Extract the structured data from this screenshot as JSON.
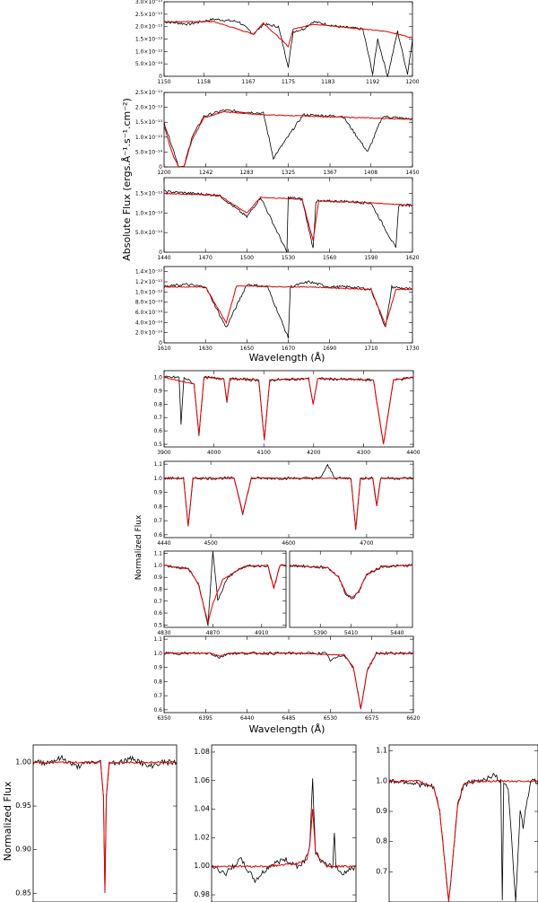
{
  "figure": {
    "group1_ylabel": "Absolute Flux (ergs.Å⁻¹.s⁻¹.cm⁻²)",
    "group1_xlabel": "Wavelength (Å)",
    "group2_ylabel": "Normalized Flux",
    "group2_xlabel": "Wavelength (Å)",
    "group3_ylabel": "Normalized Flux"
  },
  "colors": {
    "observed": "#000000",
    "model": "#e00000"
  },
  "chart_data": [
    {
      "type": "line",
      "id": "p1",
      "x_ticks": [
        1150,
        1158,
        1167,
        1175,
        1183,
        1192,
        1200
      ],
      "y_ticks": [
        "0",
        "5.0×10⁻¹⁴",
        "1.0×10⁻¹³",
        "1.5×10⁻¹³",
        "2.0×10⁻¹³",
        "2.5×10⁻¹³",
        "3.0×10⁻¹³"
      ],
      "xlim": [
        1150,
        1200
      ],
      "ylim": [
        0,
        3e-13
      ],
      "series": [
        {
          "role": "observed",
          "x": [
            1150,
            1155,
            1160,
            1165,
            1168,
            1170,
            1173,
            1175,
            1176,
            1178,
            1180,
            1185,
            1190,
            1192,
            1193,
            1195,
            1197,
            1199,
            1200
          ],
          "y": [
            2.2e-13,
            2.1e-13,
            2.3e-13,
            2.2e-13,
            1.7e-13,
            2.1e-13,
            2e-13,
            4e-14,
            1.8e-13,
            1.9e-13,
            2.2e-13,
            2e-13,
            1.9e-13,
            1e-14,
            1.5e-13,
            0.0,
            1.8e-13,
            1e-14,
            1.5e-13
          ]
        },
        {
          "role": "model",
          "x": [
            1150,
            1160,
            1168,
            1170,
            1175,
            1176,
            1180,
            1190,
            1195,
            1200
          ],
          "y": [
            2.2e-13,
            2.2e-13,
            1.7e-13,
            2.15e-13,
            1.2e-13,
            1.9e-13,
            2.1e-13,
            1.9e-13,
            1.8e-13,
            1.55e-13
          ]
        }
      ]
    },
    {
      "type": "line",
      "id": "p2",
      "x_ticks": [
        1200,
        1242,
        1283,
        1325,
        1367,
        1408,
        1450
      ],
      "y_ticks": [
        "0",
        "5.0×10⁻¹⁴",
        "1.0×10⁻¹³",
        "1.5×10⁻¹³",
        "2.0×10⁻¹³",
        "2.5×10⁻¹³"
      ],
      "xlim": [
        1200,
        1450
      ],
      "ylim": [
        0,
        2.5e-13
      ],
      "series": [
        {
          "role": "observed",
          "x": [
            1200,
            1205,
            1210,
            1215,
            1220,
            1228,
            1240,
            1260,
            1300,
            1310,
            1340,
            1380,
            1405,
            1420,
            1450
          ],
          "y": [
            1.5e-13,
            1e-13,
            5e-14,
            0.0,
            0.0,
            1e-13,
            1.7e-13,
            1.9e-13,
            1.8e-13,
            3e-14,
            1.75e-13,
            1.7e-13,
            5e-14,
            1.7e-13,
            1.6e-13
          ]
        },
        {
          "role": "model",
          "x": [
            1200,
            1205,
            1210,
            1215,
            1220,
            1228,
            1240,
            1260,
            1300,
            1350,
            1400,
            1450
          ],
          "y": [
            1.4e-13,
            8e-14,
            3e-14,
            0.0,
            0.0,
            9e-14,
            1.65e-13,
            1.85e-13,
            1.75e-13,
            1.7e-13,
            1.65e-13,
            1.6e-13
          ]
        }
      ]
    },
    {
      "type": "line",
      "id": "p3",
      "x_ticks": [
        1440,
        1470,
        1500,
        1530,
        1560,
        1590,
        1620
      ],
      "y_ticks": [
        "0",
        "5.0×10⁻¹⁴",
        "1.0×10⁻¹³",
        "1.5×10⁻¹³"
      ],
      "xlim": [
        1440,
        1620
      ],
      "ylim": [
        0,
        1.9e-13
      ],
      "series": [
        {
          "role": "observed",
          "x": [
            1440,
            1460,
            1480,
            1500,
            1510,
            1529,
            1530,
            1540,
            1548,
            1550,
            1570,
            1590,
            1608,
            1610,
            1620
          ],
          "y": [
            1.55e-13,
            1.5e-13,
            1.45e-13,
            9e-14,
            1.4e-13,
            0.0,
            1.4e-13,
            1.35e-13,
            1e-14,
            1.3e-13,
            1.3e-13,
            1.25e-13,
            1e-14,
            1.2e-13,
            1.2e-13
          ]
        },
        {
          "role": "model",
          "x": [
            1440,
            1480,
            1500,
            1510,
            1540,
            1548,
            1552,
            1580,
            1620
          ],
          "y": [
            1.5e-13,
            1.45e-13,
            1e-13,
            1.4e-13,
            1.35e-13,
            3e-14,
            1.3e-13,
            1.28e-13,
            1.2e-13
          ]
        }
      ]
    },
    {
      "type": "line",
      "id": "p4",
      "x_ticks": [
        1610,
        1630,
        1650,
        1670,
        1690,
        1710,
        1730
      ],
      "y_ticks": [
        "0",
        "2.0×10⁻¹⁴",
        "4.0×10⁻¹⁴",
        "6.0×10⁻¹⁴",
        "8.0×10⁻¹⁴",
        "1.0×10⁻¹³",
        "1.2×10⁻¹³",
        "1.4×10⁻¹³"
      ],
      "xlim": [
        1610,
        1730
      ],
      "ylim": [
        0,
        1.5e-13
      ],
      "series": [
        {
          "role": "observed",
          "x": [
            1610,
            1620,
            1630,
            1640,
            1650,
            1660,
            1670,
            1671,
            1680,
            1690,
            1700,
            1710,
            1717,
            1720,
            1730
          ],
          "y": [
            1.1e-13,
            1.15e-13,
            1.1e-13,
            3e-14,
            1.15e-13,
            1.1e-13,
            1e-14,
            1.1e-13,
            1.2e-13,
            1.1e-13,
            1.1e-13,
            1.05e-13,
            3e-14,
            1.1e-13,
            1.05e-13
          ]
        },
        {
          "role": "model",
          "x": [
            1610,
            1630,
            1640,
            1645,
            1670,
            1680,
            1710,
            1717,
            1722,
            1730
          ],
          "y": [
            1.1e-13,
            1.1e-13,
            4e-14,
            1.12e-13,
            1.1e-13,
            1.1e-13,
            1.05e-13,
            3.5e-14,
            1.05e-13,
            1.05e-13
          ]
        }
      ]
    },
    {
      "type": "line",
      "id": "p5",
      "x_ticks": [
        3900,
        4000,
        4100,
        4200,
        4300,
        4400
      ],
      "y_ticks": [
        "0.5",
        "0.6",
        "0.7",
        "0.8",
        "0.9",
        "1.0"
      ],
      "xlim": [
        3900,
        4400
      ],
      "ylim": [
        0.48,
        1.05
      ],
      "series": [
        {
          "role": "observed",
          "x": [
            3900,
            3930,
            3934,
            3940,
            3960,
            3970,
            3980,
            4020,
            4026,
            4032,
            4090,
            4101,
            4112,
            4190,
            4199,
            4208,
            4320,
            4340,
            4360,
            4400
          ],
          "y": [
            1.0,
            1.0,
            0.65,
            1.0,
            0.95,
            0.57,
            1.0,
            0.99,
            0.82,
            0.99,
            0.98,
            0.53,
            0.98,
            0.99,
            0.8,
            0.99,
            0.98,
            0.5,
            0.98,
            1.0
          ]
        },
        {
          "role": "model",
          "x": [
            3900,
            3960,
            3970,
            3980,
            4020,
            4026,
            4032,
            4090,
            4101,
            4112,
            4190,
            4199,
            4208,
            4320,
            4340,
            4360,
            4400
          ],
          "y": [
            1.0,
            0.95,
            0.57,
            1.0,
            0.99,
            0.82,
            0.99,
            0.98,
            0.53,
            0.98,
            0.99,
            0.8,
            0.99,
            0.98,
            0.5,
            0.98,
            1.0
          ]
        }
      ]
    },
    {
      "type": "line",
      "id": "p6",
      "x_ticks": [
        4440,
        4500,
        4600,
        4700
      ],
      "y_ticks": [
        "0.6",
        "0.7",
        "0.8",
        "0.9",
        "1.0",
        "1.1"
      ],
      "xlim": [
        4440,
        4760
      ],
      "ylim": [
        0.58,
        1.12
      ],
      "series": [
        {
          "role": "observed",
          "x": [
            4440,
            4465,
            4471,
            4477,
            4530,
            4541,
            4552,
            4640,
            4650,
            4660,
            4680,
            4686,
            4692,
            4708,
            4713,
            4718,
            4760
          ],
          "y": [
            1.0,
            1.0,
            0.65,
            1.0,
            1.0,
            0.75,
            1.0,
            1.0,
            1.09,
            1.0,
            1.0,
            0.63,
            1.0,
            1.0,
            0.8,
            1.0,
            1.0
          ]
        },
        {
          "role": "model",
          "x": [
            4440,
            4465,
            4471,
            4477,
            4530,
            4541,
            4552,
            4680,
            4686,
            4692,
            4708,
            4713,
            4718,
            4760
          ],
          "y": [
            1.0,
            1.0,
            0.66,
            1.0,
            1.0,
            0.75,
            1.0,
            1.0,
            0.64,
            1.0,
            1.0,
            0.81,
            1.0,
            1.0
          ]
        }
      ]
    },
    {
      "type": "line",
      "id": "p7",
      "x_ticks": [
        4830,
        4870,
        4910
      ],
      "y_ticks": [
        "0.5",
        "0.6",
        "0.7",
        "0.8",
        "0.9",
        "1.0",
        "1.1"
      ],
      "xlim": [
        4830,
        4930
      ],
      "ylim": [
        0.48,
        1.12
      ],
      "series": [
        {
          "role": "observed",
          "x": [
            4830,
            4850,
            4858,
            4862,
            4866,
            4870,
            4874,
            4882,
            4895,
            4915,
            4920,
            4925,
            4930
          ],
          "y": [
            1.0,
            0.97,
            0.85,
            0.68,
            0.5,
            1.12,
            0.7,
            0.9,
            0.99,
            1.0,
            0.8,
            1.0,
            1.0
          ]
        },
        {
          "role": "model",
          "x": [
            4830,
            4850,
            4858,
            4862,
            4866,
            4870,
            4878,
            4895,
            4915,
            4920,
            4925,
            4930
          ],
          "y": [
            1.0,
            0.97,
            0.85,
            0.68,
            0.52,
            0.68,
            0.88,
            0.99,
            1.0,
            0.81,
            1.0,
            1.0
          ]
        }
      ]
    },
    {
      "type": "line",
      "id": "p8",
      "x_ticks": [
        5390,
        5410,
        5440
      ],
      "y_ticks": [],
      "xlim": [
        5370,
        5450
      ],
      "ylim": [
        0.48,
        1.12
      ],
      "series": [
        {
          "role": "observed",
          "x": [
            5370,
            5395,
            5402,
            5407,
            5411,
            5415,
            5420,
            5430,
            5450
          ],
          "y": [
            1.0,
            0.98,
            0.9,
            0.75,
            0.72,
            0.78,
            0.92,
            0.99,
            1.0
          ]
        },
        {
          "role": "model",
          "x": [
            5370,
            5395,
            5402,
            5407,
            5411,
            5415,
            5420,
            5430,
            5450
          ],
          "y": [
            1.0,
            0.98,
            0.9,
            0.76,
            0.73,
            0.78,
            0.92,
            0.99,
            1.0
          ]
        }
      ]
    },
    {
      "type": "line",
      "id": "p9",
      "x_ticks": [
        6350,
        6395,
        6440,
        6485,
        6530,
        6575,
        6620
      ],
      "y_ticks": [
        "0.6",
        "0.7",
        "0.8",
        "0.9",
        "1.0",
        "1.1"
      ],
      "xlim": [
        6350,
        6620
      ],
      "ylim": [
        0.58,
        1.12
      ],
      "series": [
        {
          "role": "observed",
          "x": [
            6350,
            6400,
            6410,
            6420,
            6500,
            6525,
            6530,
            6545,
            6555,
            6560,
            6563,
            6566,
            6570,
            6580,
            6620
          ],
          "y": [
            1.0,
            1.0,
            0.97,
            1.0,
            1.0,
            1.0,
            0.95,
            0.99,
            0.9,
            0.72,
            0.6,
            0.72,
            0.88,
            1.0,
            1.0
          ]
        },
        {
          "role": "model",
          "x": [
            6350,
            6400,
            6410,
            6420,
            6500,
            6530,
            6545,
            6555,
            6560,
            6563,
            6566,
            6570,
            6580,
            6620
          ],
          "y": [
            1.0,
            1.0,
            0.98,
            1.0,
            1.0,
            0.99,
            0.99,
            0.9,
            0.72,
            0.61,
            0.72,
            0.88,
            1.0,
            1.0
          ]
        }
      ]
    },
    {
      "type": "line",
      "id": "p10",
      "x_ticks": [],
      "y_ticks": [
        "0.85",
        "0.90",
        "0.95",
        "1.00"
      ],
      "xlim": [
        0,
        100
      ],
      "ylim": [
        0.84,
        1.02
      ],
      "series": [
        {
          "role": "observed",
          "x": [
            0,
            10,
            20,
            30,
            40,
            47,
            49,
            50,
            51,
            53,
            60,
            70,
            80,
            90,
            100
          ],
          "y": [
            1.0,
            1.0,
            1.005,
            0.995,
            1.0,
            1.0,
            0.96,
            0.85,
            0.96,
            1.0,
            1.0,
            1.005,
            0.995,
            1.0,
            1.0
          ]
        },
        {
          "role": "model",
          "x": [
            0,
            47,
            49,
            50,
            51,
            53,
            100
          ],
          "y": [
            1.0,
            1.0,
            0.96,
            0.85,
            0.96,
            1.0,
            1.0
          ]
        }
      ]
    },
    {
      "type": "line",
      "id": "p11",
      "x_ticks": [],
      "y_ticks": [
        "0.98",
        "1.00",
        "1.02",
        "1.04",
        "1.06",
        "1.08"
      ],
      "xlim": [
        0,
        100
      ],
      "ylim": [
        0.975,
        1.085
      ],
      "series": [
        {
          "role": "observed",
          "x": [
            0,
            10,
            20,
            30,
            40,
            50,
            60,
            65,
            68,
            70,
            72,
            75,
            80,
            84,
            85,
            86,
            90,
            100
          ],
          "y": [
            1.0,
            0.995,
            1.005,
            0.99,
            1.0,
            1.005,
            1.0,
            1.005,
            1.015,
            1.06,
            1.01,
            1.005,
            1.0,
            1.0,
            1.025,
            1.0,
            0.995,
            1.0
          ]
        },
        {
          "role": "model",
          "x": [
            0,
            40,
            60,
            66,
            68,
            70,
            72,
            75,
            80,
            100
          ],
          "y": [
            1.0,
            1.0,
            1.002,
            1.005,
            1.015,
            1.04,
            1.01,
            1.005,
            1.0,
            1.0
          ]
        }
      ]
    },
    {
      "type": "line",
      "id": "p12",
      "x_ticks": [],
      "y_ticks": [
        "0.7",
        "0.8",
        "0.9",
        "1.0",
        "1.1"
      ],
      "xlim": [
        0,
        100
      ],
      "ylim": [
        0.6,
        1.12
      ],
      "series": [
        {
          "role": "observed",
          "x": [
            0,
            10,
            20,
            30,
            34,
            38,
            40,
            42,
            46,
            50,
            60,
            70,
            75,
            76,
            77,
            80,
            85,
            88,
            90,
            95,
            100
          ],
          "y": [
            1.0,
            1.0,
            0.99,
            0.98,
            0.9,
            0.7,
            0.6,
            0.7,
            0.92,
            0.99,
            1.0,
            1.02,
            1.0,
            0.6,
            1.0,
            0.98,
            0.6,
            0.9,
            0.85,
            1.0,
            1.0
          ]
        },
        {
          "role": "model",
          "x": [
            0,
            20,
            30,
            34,
            38,
            40,
            42,
            46,
            50,
            60,
            100
          ],
          "y": [
            1.0,
            1.0,
            0.98,
            0.9,
            0.7,
            0.6,
            0.7,
            0.92,
            0.99,
            1.0,
            1.0
          ]
        }
      ]
    }
  ]
}
